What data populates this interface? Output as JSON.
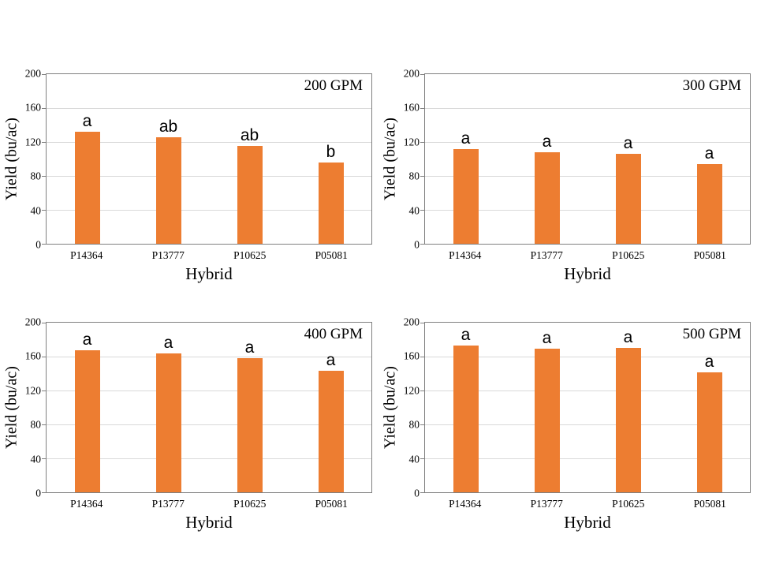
{
  "colors": {
    "bar": "#ED7D31",
    "plot_border": "#808080",
    "gridline": "#D9D9D9",
    "text": "#000000",
    "background": "#FFFFFF"
  },
  "chart_data": [
    {
      "type": "bar",
      "title": "200 GPM",
      "xlabel": "Hybrid",
      "ylabel": "Yield (bu/ac)",
      "categories": [
        "P14364",
        "P13777",
        "P10625",
        "P05081"
      ],
      "values": [
        132,
        126,
        115,
        96
      ],
      "sig_letters": [
        "a",
        "ab",
        "ab",
        "b"
      ],
      "ylim": [
        0,
        200
      ],
      "yticks": [
        0,
        40,
        80,
        120,
        160,
        200
      ],
      "grid": true,
      "legend": "none",
      "annotation_position": "top-right"
    },
    {
      "type": "bar",
      "title": "300 GPM",
      "xlabel": "Hybrid",
      "ylabel": "Yield (bu/ac)",
      "categories": [
        "P14364",
        "P13777",
        "P10625",
        "P05081"
      ],
      "values": [
        112,
        108,
        106,
        94
      ],
      "sig_letters": [
        "a",
        "a",
        "a",
        "a"
      ],
      "ylim": [
        0,
        200
      ],
      "yticks": [
        0,
        40,
        80,
        120,
        160,
        200
      ],
      "grid": true,
      "legend": "none",
      "annotation_position": "top-right"
    },
    {
      "type": "bar",
      "title": "400 GPM",
      "xlabel": "Hybrid",
      "ylabel": "Yield (bu/ac)",
      "categories": [
        "P14364",
        "P13777",
        "P10625",
        "P05081"
      ],
      "values": [
        167,
        164,
        158,
        143
      ],
      "sig_letters": [
        "a",
        "a",
        "a",
        "a"
      ],
      "ylim": [
        0,
        200
      ],
      "yticks": [
        0,
        40,
        80,
        120,
        160,
        200
      ],
      "grid": true,
      "legend": "none",
      "annotation_position": "top-right"
    },
    {
      "type": "bar",
      "title": "500 GPM",
      "xlabel": "Hybrid",
      "ylabel": "Yield (bu/ac)",
      "categories": [
        "P14364",
        "P13777",
        "P10625",
        "P05081"
      ],
      "values": [
        173,
        169,
        170,
        141
      ],
      "sig_letters": [
        "a",
        "a",
        "a",
        "a"
      ],
      "ylim": [
        0,
        200
      ],
      "yticks": [
        0,
        40,
        80,
        120,
        160,
        200
      ],
      "grid": true,
      "legend": "none",
      "annotation_position": "top-right"
    }
  ]
}
